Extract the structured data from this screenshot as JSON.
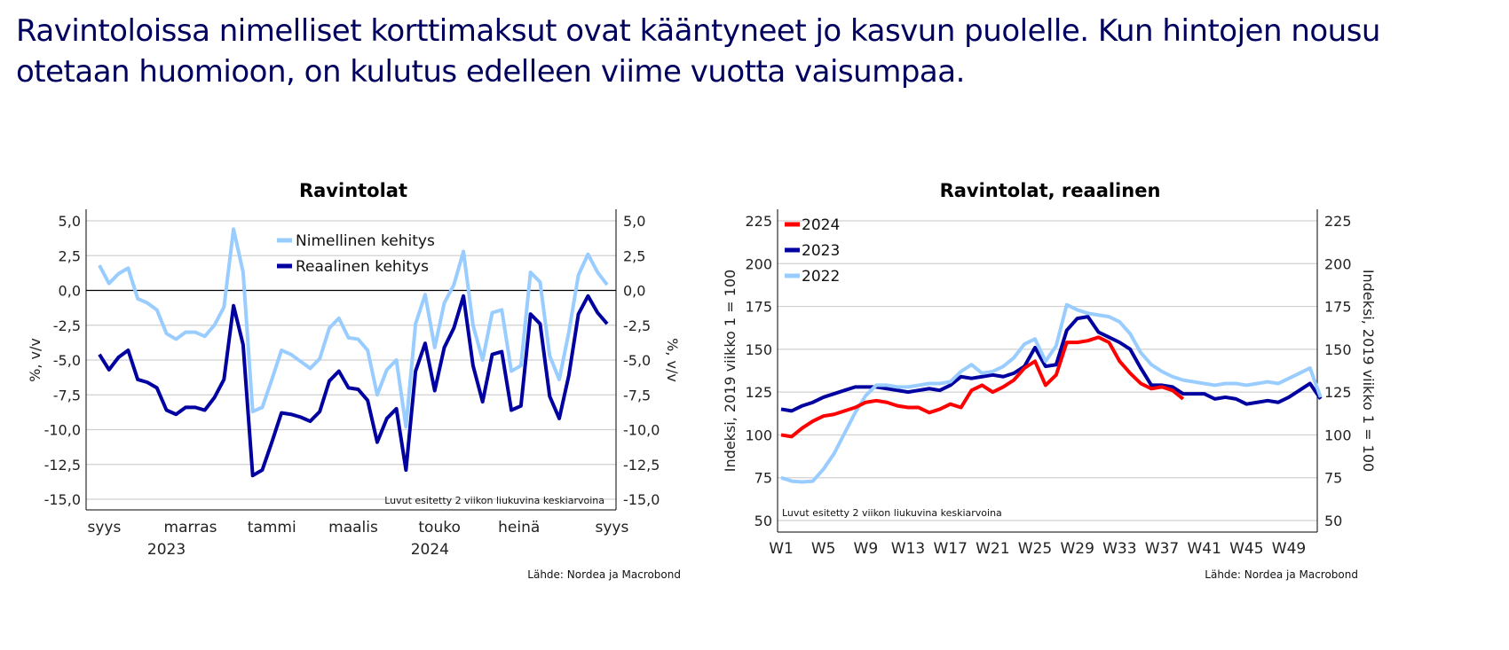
{
  "headline": "Ravintoloissa nimelliset korttimaksut ovat kääntyneet jo kasvun puolelle. Kun hintojen nousu otetaan huomioon, on kulutus edelleen viime vuotta vaisumpaa.",
  "colors": {
    "light_blue": "#99ccff",
    "dark_blue": "#0000a0",
    "red": "#ff0000",
    "headline": "#00005e"
  },
  "chart_data": [
    {
      "type": "line",
      "title": "Ravintolat",
      "ylabel": "%, v/v",
      "ylabel_right": "%, v/v",
      "ylim": [
        -15,
        5
      ],
      "yticks": [
        "5,0",
        "2,5",
        "0,0",
        "-2,5",
        "-5,0",
        "-7,5",
        "-10,0",
        "-12,5",
        "-15,0"
      ],
      "ytick_values": [
        5,
        2.5,
        0,
        -2.5,
        -5,
        -7.5,
        -10,
        -12.5,
        -15
      ],
      "xtick_labels": [
        "syys",
        "marras",
        "tammi",
        "maalis",
        "touko",
        "heinä",
        "syys"
      ],
      "xtick_positions": [
        0.5,
        9.5,
        18,
        26.5,
        35.5,
        43.8,
        53.5
      ],
      "year_labels": [
        "2023",
        "2024"
      ],
      "year_positions": [
        7,
        34.5
      ],
      "note": "Luvut esitetty 2 viikon liukuvina keskiarvoina",
      "source": "Lähde: Nordea ja Macrobond",
      "legend_position": "top-center",
      "series": [
        {
          "name": "Nimellinen kehitys",
          "color": "#99ccff",
          "values": [
            1.8,
            0.5,
            1.2,
            1.6,
            -0.6,
            -0.9,
            -1.4,
            -3.1,
            -3.5,
            -3.0,
            -3.0,
            -3.3,
            -2.5,
            -1.2,
            4.4,
            1.3,
            -8.7,
            -8.4,
            -6.4,
            -4.3,
            -4.6,
            -5.1,
            -5.6,
            -4.9,
            -2.7,
            -2.0,
            -3.4,
            -3.5,
            -4.3,
            -7.5,
            -5.7,
            -5.0,
            -9.8,
            -2.4,
            -0.3,
            -4.1,
            -0.9,
            0.4,
            2.8,
            -2.5,
            -5.0,
            -1.6,
            -1.4,
            -5.8,
            -5.4,
            1.3,
            0.6,
            -4.7,
            -6.4,
            -3.0,
            1.1,
            2.6,
            1.3,
            0.4
          ]
        },
        {
          "name": "Reaalinen kehitys",
          "color": "#0000a0",
          "values": [
            -4.6,
            -5.7,
            -4.8,
            -4.3,
            -6.4,
            -6.6,
            -7.0,
            -8.6,
            -8.9,
            -8.4,
            -8.4,
            -8.6,
            -7.7,
            -6.4,
            -1.1,
            -3.9,
            -13.3,
            -12.9,
            -10.9,
            -8.8,
            -8.9,
            -9.1,
            -9.4,
            -8.7,
            -6.5,
            -5.8,
            -7.0,
            -7.1,
            -7.9,
            -10.9,
            -9.2,
            -8.5,
            -12.9,
            -5.8,
            -3.8,
            -7.2,
            -4.1,
            -2.7,
            -0.4,
            -5.4,
            -8.0,
            -4.6,
            -4.4,
            -8.6,
            -8.3,
            -1.7,
            -2.4,
            -7.6,
            -9.2,
            -6.1,
            -1.7,
            -0.4,
            -1.6,
            -2.4
          ]
        }
      ]
    },
    {
      "type": "line",
      "title": "Ravintolat, reaalinen",
      "ylabel": "Indeksi, 2019 viikko 1 = 100",
      "ylabel_right": "Indeksi, 2019 viikko 1 = 100",
      "ylim": [
        50,
        225
      ],
      "yticks": [
        "225",
        "200",
        "175",
        "150",
        "125",
        "100",
        "75",
        "50"
      ],
      "ytick_values": [
        225,
        200,
        175,
        150,
        125,
        100,
        75,
        50
      ],
      "xtick_labels": [
        "W1",
        "W5",
        "W9",
        "W13",
        "W17",
        "W21",
        "W25",
        "W29",
        "W33",
        "W37",
        "W41",
        "W45",
        "W49"
      ],
      "xtick_weeks": [
        1,
        5,
        9,
        13,
        17,
        21,
        25,
        29,
        33,
        37,
        41,
        45,
        49
      ],
      "xlim": [
        1,
        52.3
      ],
      "note": "Luvut esitetty 2 viikon liukuvina keskiarvoina",
      "source": "Lähde: Nordea ja Macrobond",
      "legend_position": "top-left",
      "series": [
        {
          "name": "2024",
          "color": "#ff0000",
          "values": [
            100,
            99,
            104,
            108,
            111,
            112,
            114,
            116,
            119,
            120,
            119,
            117,
            116,
            116,
            113,
            115,
            118,
            116,
            126,
            129,
            125,
            128,
            132,
            139,
            143,
            129,
            135,
            154,
            154,
            155,
            157,
            154,
            143,
            136,
            130,
            127,
            128,
            126,
            121
          ]
        },
        {
          "name": "2023",
          "color": "#0000a0",
          "values": [
            115,
            114,
            117,
            119,
            122,
            124,
            126,
            128,
            128,
            128,
            127,
            126,
            125,
            126,
            127,
            126,
            129,
            134,
            133,
            134,
            135,
            134,
            136,
            140,
            151,
            140,
            141,
            161,
            168,
            169,
            160,
            157,
            154,
            150,
            139,
            129,
            129,
            128,
            124,
            124,
            124,
            121,
            122,
            121,
            118,
            119,
            120,
            119,
            122,
            126,
            130,
            121
          ]
        },
        {
          "name": "2022",
          "color": "#99ccff",
          "values": [
            75,
            73,
            72.5,
            73,
            80,
            89,
            101,
            113,
            123,
            129,
            129,
            128,
            128,
            129,
            130,
            130,
            131,
            137,
            141,
            136,
            137,
            140,
            145,
            153,
            156,
            143,
            152,
            176,
            173,
            171,
            170,
            169,
            166,
            159,
            148,
            141,
            137,
            134,
            132,
            131,
            130,
            129,
            130,
            130,
            129,
            130,
            131,
            130,
            133,
            136,
            139,
            122
          ]
        }
      ]
    }
  ]
}
